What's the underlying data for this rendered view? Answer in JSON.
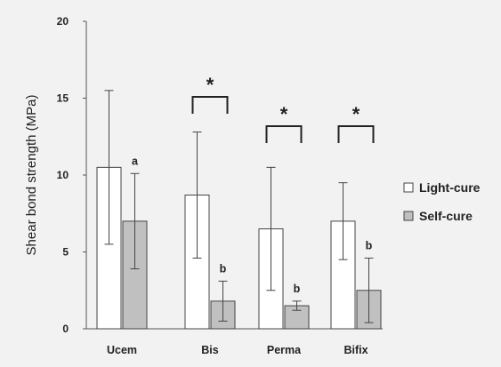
{
  "chart_data": {
    "type": "bar",
    "ylabel": "Shear bond strength (MPa)",
    "xlabel": "",
    "ylim": [
      0,
      20
    ],
    "yticks": [
      0,
      5,
      10,
      15,
      20
    ],
    "categories": [
      "Ucem",
      "Bis",
      "Perma",
      "Bifix"
    ],
    "series": [
      {
        "name": "Light-cure",
        "color": "#ffffff",
        "values": [
          10.5,
          8.7,
          6.5,
          7.0
        ],
        "errors": [
          5.0,
          4.1,
          4.0,
          2.5
        ]
      },
      {
        "name": "Self-cure",
        "color": "#c0c0c0",
        "values": [
          7.0,
          1.8,
          1.5,
          2.5
        ],
        "errors": [
          3.1,
          1.3,
          0.3,
          2.1
        ]
      }
    ],
    "self_cure_letters": [
      "a",
      "b",
      "b",
      "b"
    ],
    "significance_marker": "*",
    "significant_categories": [
      "Bis",
      "Perma",
      "Bifix"
    ],
    "legend_position": "right",
    "grid": false
  }
}
